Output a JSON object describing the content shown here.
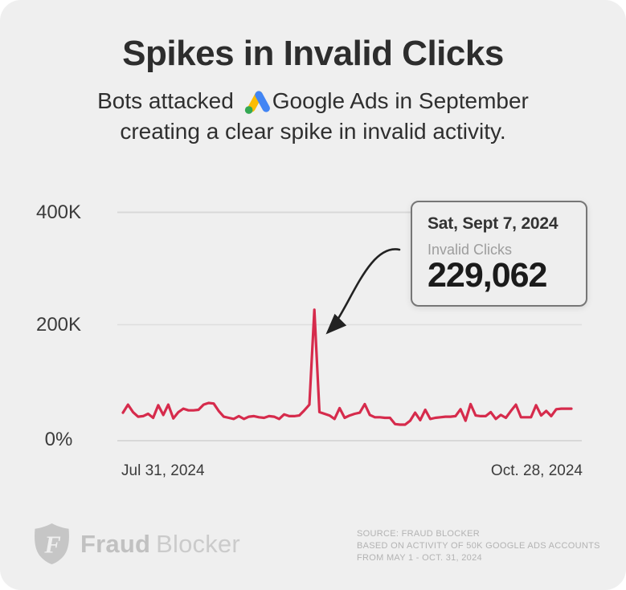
{
  "header": {
    "title": "Spikes in Invalid Clicks",
    "subtitle_part1": "Bots attacked",
    "subtitle_part2": "Google Ads in September",
    "subtitle_line2": "creating a clear spike in invalid activity.",
    "google_ads_icon": "google-ads-logo"
  },
  "chart_data": {
    "type": "line",
    "title": "Spikes in Invalid Clicks",
    "xlabel": "",
    "ylabel": "",
    "x_start_label": "Jul 31, 2024",
    "x_end_label": "Oct. 28, 2024",
    "interval": "daily",
    "y_ticks": [
      "400K",
      "200K",
      "0%"
    ],
    "y_tick_values": [
      400000,
      200000,
      0
    ],
    "ylim": [
      0,
      400000
    ],
    "grid": "horizontal",
    "legend": "none",
    "line_color": "#d62b4c",
    "series": [
      {
        "name": "Invalid Clicks",
        "start_date": "Jul 31, 2024",
        "end_date": "Oct. 28, 2024",
        "peak": {
          "date": "Sat, Sept 7, 2024",
          "value": 229062,
          "index": 38
        },
        "values": [
          49000,
          63000,
          50000,
          42000,
          43000,
          47000,
          40000,
          62000,
          45000,
          63000,
          39000,
          50000,
          56000,
          53000,
          53000,
          54000,
          63000,
          66000,
          65000,
          52000,
          42000,
          40000,
          38000,
          43000,
          38000,
          42000,
          43000,
          41000,
          40000,
          43000,
          42000,
          38000,
          46000,
          43000,
          43000,
          44000,
          53000,
          63000,
          229062,
          50000,
          47000,
          44000,
          38000,
          57000,
          40000,
          44000,
          47000,
          49000,
          64000,
          45000,
          41000,
          41000,
          40000,
          40000,
          29000,
          28000,
          28000,
          35000,
          49000,
          36000,
          54000,
          38000,
          40000,
          41000,
          42000,
          42000,
          43000,
          55000,
          35000,
          64000,
          44000,
          43000,
          43000,
          50000,
          38000,
          45000,
          40000,
          52000,
          63000,
          41000,
          41000,
          41000,
          62000,
          44000,
          52000,
          43000,
          55000,
          56000,
          56000,
          56000
        ]
      }
    ]
  },
  "callout": {
    "date": "Sat, Sept 7, 2024",
    "label": "Invalid Clicks",
    "value": "229,062"
  },
  "footer": {
    "brand_name_bold": "Fraud",
    "brand_name_light": "Blocker",
    "source_line1": "SOURCE: FRAUD BLOCKER",
    "source_line2": "BASED ON ACTIVITY OF 50K GOOGLE ADS ACCOUNTS",
    "source_line3": "FROM MAY 1 - OCT. 31, 2024"
  },
  "colors": {
    "card_background": "#efefef",
    "line": "#d62b4c",
    "gridline": "#d8d8d8",
    "text_dark": "#2d2d2d",
    "tooltip_border": "#767676",
    "brand_gray": "#c1c1c1",
    "google_blue": "#4285F4",
    "google_yellow": "#FBBC04",
    "google_green": "#34A853",
    "arrow": "#222222"
  }
}
